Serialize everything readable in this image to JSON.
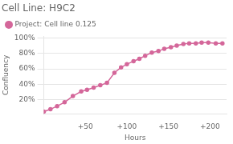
{
  "chart_data": {
    "type": "line",
    "title": "Cell Line: H9C2",
    "xlabel": "Hours",
    "ylabel": "Confluency",
    "x": [
      0,
      8,
      16,
      25,
      35,
      45,
      52,
      60,
      68,
      76,
      85,
      93,
      100,
      108,
      115,
      122,
      130,
      138,
      145,
      153,
      160,
      168,
      175,
      183,
      190,
      198,
      207,
      215
    ],
    "series": [
      {
        "name": "Project: Cell line 0.125",
        "color": "#d4679a",
        "marker": "o",
        "values": [
          0.05,
          0.08,
          0.12,
          0.17,
          0.25,
          0.31,
          0.33,
          0.36,
          0.39,
          0.42,
          0.55,
          0.62,
          0.66,
          0.7,
          0.73,
          0.77,
          0.81,
          0.83,
          0.86,
          0.88,
          0.9,
          0.92,
          0.93,
          0.93,
          0.94,
          0.94,
          0.93,
          0.93
        ]
      }
    ],
    "xlim": [
      0,
      220
    ],
    "xticks": [
      {
        "value": 50,
        "label": "+50"
      },
      {
        "value": 100,
        "label": "+100"
      },
      {
        "value": 150,
        "label": "+150"
      },
      {
        "value": 200,
        "label": "+200"
      }
    ],
    "ylim": [
      0.02,
      1.02
    ],
    "yticks": [
      {
        "value": 0.2,
        "label": "20%"
      },
      {
        "value": 0.4,
        "label": "40%"
      },
      {
        "value": 0.6,
        "label": "60%"
      },
      {
        "value": 0.8,
        "label": "80%"
      },
      {
        "value": 1.0,
        "label": "100%"
      }
    ],
    "grid": "y",
    "legend": "top left"
  }
}
